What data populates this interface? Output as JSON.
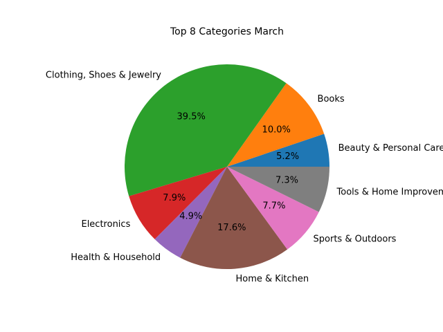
{
  "chart_data": {
    "type": "pie",
    "title": "Top 8 Categories March",
    "categories": [
      "Beauty & Personal Care",
      "Books",
      "Clothing, Shoes & Jewelry",
      "Electronics",
      "Health & Household",
      "Home & Kitchen",
      "Sports & Outdoors",
      "Tools & Home Improvement"
    ],
    "values": [
      5.2,
      10.0,
      39.5,
      7.9,
      4.9,
      17.6,
      7.7,
      7.3
    ],
    "percent_labels": [
      "5.2%",
      "10.0%",
      "39.5%",
      "7.9%",
      "4.9%",
      "17.6%",
      "7.7%",
      "7.3%"
    ],
    "colors": [
      "#1f77b4",
      "#ff7f0e",
      "#2ca02c",
      "#d62728",
      "#9467bd",
      "#8c564b",
      "#e377c2",
      "#7f7f7f"
    ],
    "start_angle_deg": 0,
    "direction": "counterclockwise",
    "legend": "none"
  }
}
